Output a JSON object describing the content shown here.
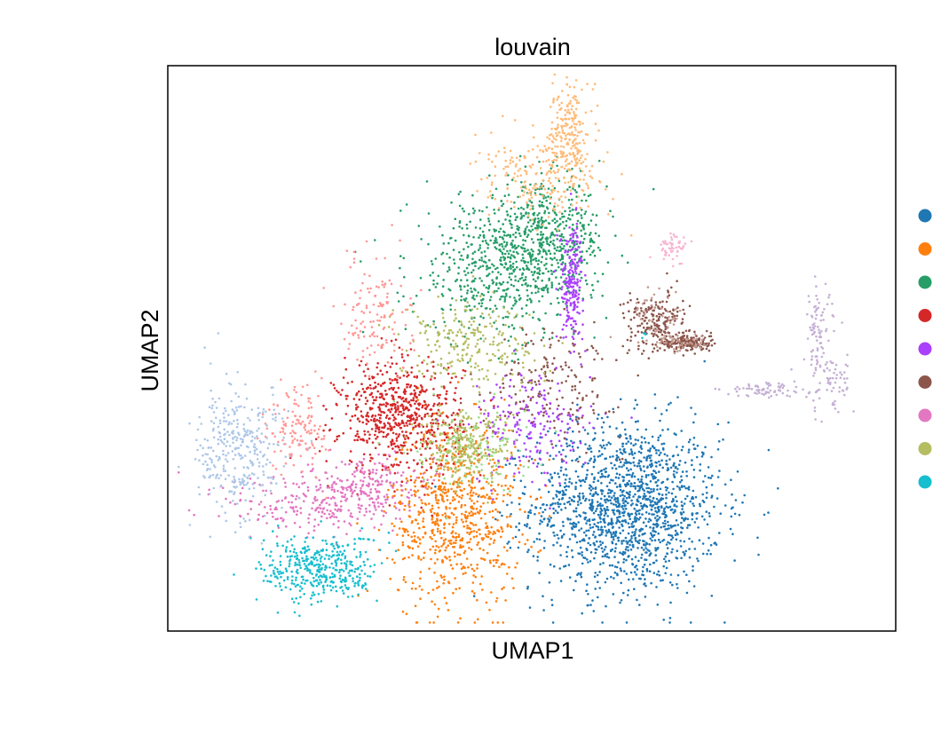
{
  "chart_data": {
    "type": "scatter",
    "title": "louvain",
    "xlabel": "UMAP1",
    "ylabel": "UMAP2",
    "xlim": [
      0,
      100
    ],
    "ylim": [
      0,
      100
    ],
    "grid": false,
    "legend": "right",
    "series": [
      {
        "cluster": 0,
        "color": "#1f77b4",
        "n": 1500,
        "clusters": [
          {
            "cx": 63,
            "cy": 22,
            "sx": 6.5,
            "sy": 7.5
          }
        ]
      },
      {
        "cluster": 1,
        "color": "#ff7f0e",
        "n": 750,
        "clusters": [
          {
            "cx": 39.5,
            "cy": 21,
            "sx": 4.5,
            "sy": 8
          }
        ]
      },
      {
        "cluster": 2,
        "color": "#279e68",
        "n": 1000,
        "clusters": [
          {
            "cx": 45,
            "cy": 64,
            "sx": 6,
            "sy": 6.5
          },
          {
            "cx": 52,
            "cy": 69,
            "sx": 4,
            "sy": 5
          }
        ]
      },
      {
        "cluster": 3,
        "color": "#d62728",
        "n": 680,
        "clusters": [
          {
            "cx": 32,
            "cy": 38,
            "sx": 4.2,
            "sy": 5
          }
        ]
      },
      {
        "cluster": 4,
        "color": "#aa40fc",
        "n": 420,
        "clusters": [
          {
            "cx": 50,
            "cy": 36,
            "sx": 4.2,
            "sy": 5
          },
          {
            "cx": 55.5,
            "cy": 62,
            "sx": 0.8,
            "sy": 5
          }
        ]
      },
      {
        "cluster": 5,
        "color": "#8c564b",
        "n": 520,
        "clusters": [
          {
            "cx": 53.5,
            "cy": 44,
            "sx": 4.5,
            "sy": 5
          },
          {
            "cx": 67,
            "cy": 55,
            "sx": 2.2,
            "sy": 2.5
          },
          {
            "cx": 71,
            "cy": 51,
            "sx": 1.8,
            "sy": 0.8
          }
        ]
      },
      {
        "cluster": 6,
        "color": "#e377c2",
        "n": 400,
        "clusters": [
          {
            "cx": 20,
            "cy": 22,
            "sx": 6,
            "sy": 2.8
          },
          {
            "cx": 27,
            "cy": 26,
            "sx": 3.5,
            "sy": 2.5
          }
        ]
      },
      {
        "cluster": 7,
        "color": "#b5bd61",
        "n": 480,
        "clusters": [
          {
            "cx": 41,
            "cy": 51,
            "sx": 5,
            "sy": 4
          },
          {
            "cx": 41,
            "cy": 33,
            "sx": 3,
            "sy": 3
          }
        ]
      },
      {
        "cluster": 8,
        "color": "#17becf",
        "n": 400,
        "clusters": [
          {
            "cx": 21,
            "cy": 11,
            "sx": 4,
            "sy": 3
          }
        ]
      },
      {
        "cluster": 9,
        "color": "#aec7e8",
        "n": 330,
        "clusters": [
          {
            "cx": 8,
            "cy": 30,
            "sx": 2.5,
            "sy": 6
          },
          {
            "cx": 11.5,
            "cy": 34,
            "sx": 2.5,
            "sy": 5
          }
        ]
      },
      {
        "cluster": 10,
        "color": "#ffbb78",
        "n": 420,
        "clusters": [
          {
            "cx": 51.5,
            "cy": 80,
            "sx": 4.5,
            "sy": 3.5
          },
          {
            "cx": 55,
            "cy": 88,
            "sx": 1.3,
            "sy": 4.5
          }
        ]
      },
      {
        "cluster": 11,
        "color": "#98df8a",
        "n": 120,
        "clusters": [
          {
            "cx": 42,
            "cy": 33,
            "sx": 4,
            "sy": 4
          }
        ]
      },
      {
        "cluster": 12,
        "color": "#ff9896",
        "n": 260,
        "clusters": [
          {
            "cx": 28.5,
            "cy": 56,
            "sx": 2.5,
            "sy": 5
          },
          {
            "cx": 18,
            "cy": 36,
            "sx": 2,
            "sy": 4
          }
        ]
      },
      {
        "cluster": 13,
        "color": "#c5b0d5",
        "n": 220,
        "clusters": [
          {
            "cx": 91,
            "cy": 45,
            "sx": 2,
            "sy": 3.5
          },
          {
            "cx": 89.5,
            "cy": 54,
            "sx": 0.9,
            "sy": 4
          },
          {
            "cx": 83,
            "cy": 42.5,
            "sx": 3.5,
            "sy": 0.7
          }
        ]
      },
      {
        "cluster": 14,
        "color": "#c49c94",
        "n": 90,
        "clusters": [
          {
            "cx": 67,
            "cy": 56,
            "sx": 2,
            "sy": 2.5
          },
          {
            "cx": 71,
            "cy": 51,
            "sx": 1.8,
            "sy": 0.8
          }
        ]
      },
      {
        "cluster": 15,
        "color": "#f7b6d2",
        "n": 55,
        "clusters": [
          {
            "cx": 69.5,
            "cy": 68,
            "sx": 1,
            "sy": 1.2
          }
        ]
      },
      {
        "cluster": 16,
        "color": "#17becf",
        "n": 4,
        "clusters": [
          {
            "cx": 65.5,
            "cy": 52,
            "sx": 0.3,
            "sy": 0.4
          }
        ]
      }
    ],
    "legend_colors": [
      "#1f77b4",
      "#ff7f0e",
      "#279e68",
      "#d62728",
      "#aa40fc",
      "#8c564b",
      "#e377c2",
      "#b5bd61",
      "#17becf"
    ]
  }
}
